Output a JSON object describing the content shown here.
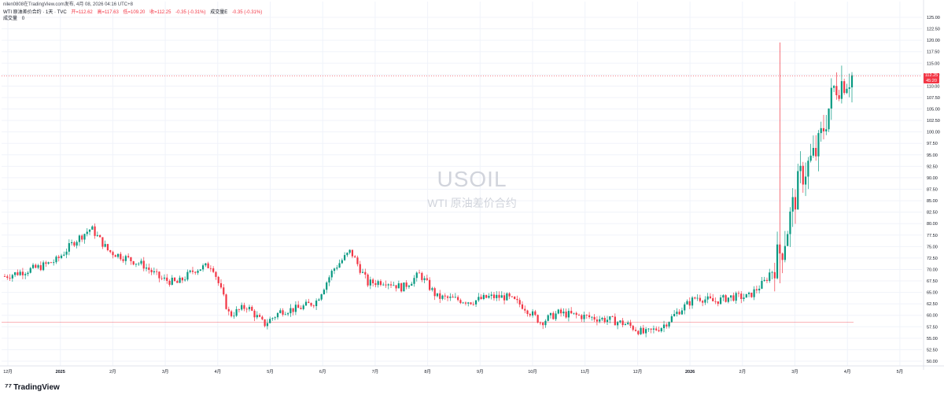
{
  "header": {
    "publisher": "nilen0808在TradingView.com发布, 4月 08, 2026 04:16 UTC+8",
    "symbol": "WTI 原油差价合约 · 1天 · TVC",
    "open": "开=112.62",
    "high": "高=117.63",
    "low": "低=109.20",
    "close": "收=112.25",
    "change": "-0.35 (-0.31%)",
    "volume_label": "成交量E",
    "volume_change": "-0.35 (-0.31%)",
    "volume_row": "成交量",
    "volume_value": "0"
  },
  "watermark": {
    "ticker": "USOIL",
    "name": "WTI 原油差价合约"
  },
  "price_tag": {
    "price": "112.25",
    "countdown": "45:20"
  },
  "brand": {
    "name": "TradingView",
    "mark": "⁷⁷"
  },
  "colors": {
    "up": "#089981",
    "down": "#f23645",
    "grid": "#f0f3fa",
    "axis_text": "#131722"
  },
  "chart_data": {
    "type": "candlestick",
    "title": "",
    "interval": "1D",
    "yaxis_ticks": [
      "125.00",
      "122.50",
      "120.00",
      "117.50",
      "115.00",
      "112.50",
      "110.00",
      "107.50",
      "105.00",
      "102.50",
      "100.00",
      "97.50",
      "95.00",
      "92.50",
      "90.00",
      "87.50",
      "85.00",
      "82.50",
      "80.00",
      "77.50",
      "75.00",
      "72.50",
      "70.00",
      "67.50",
      "65.00",
      "62.50",
      "60.00",
      "57.50",
      "55.00",
      "52.50",
      "50.00"
    ],
    "ylim": [
      50,
      125
    ],
    "xaxis_ticks": [
      "12月",
      "2025",
      "2月",
      "3月",
      "4月",
      "5月",
      "6月",
      "7月",
      "8月",
      "9月",
      "10月",
      "11月",
      "12月",
      "2026",
      "2月",
      "3月",
      "4月",
      "5月"
    ],
    "last_price": 112.25,
    "reference_level": 58.5,
    "grid": true,
    "monthly_path": [
      [
        "12月",
        68.5
      ],
      [
        "12月",
        69.5
      ],
      [
        "12月",
        70.5
      ],
      [
        "2025",
        72
      ],
      [
        "2025",
        76
      ],
      [
        "2025",
        79
      ],
      [
        "2月",
        74
      ],
      [
        "2月",
        72.5
      ],
      [
        "2月",
        71
      ],
      [
        "3月",
        68
      ],
      [
        "3月",
        67
      ],
      [
        "3月",
        70
      ],
      [
        "4月",
        71
      ],
      [
        "4月",
        60
      ],
      [
        "4月",
        62
      ],
      [
        "5月",
        58
      ],
      [
        "5月",
        61
      ],
      [
        "5月",
        61.5
      ],
      [
        "6月",
        63
      ],
      [
        "6月",
        70
      ],
      [
        "6月",
        74
      ],
      [
        "7月",
        67
      ],
      [
        "7月",
        67.5
      ],
      [
        "7月",
        66
      ],
      [
        "8月",
        69
      ],
      [
        "8月",
        64
      ],
      [
        "8月",
        63.5
      ],
      [
        "9月",
        63
      ],
      [
        "9月",
        64
      ],
      [
        "9月",
        64
      ],
      [
        "10月",
        62
      ],
      [
        "10月",
        58.5
      ],
      [
        "10月",
        60.5
      ],
      [
        "11月",
        60
      ],
      [
        "11月",
        59.5
      ],
      [
        "11月",
        59
      ],
      [
        "12月",
        58
      ],
      [
        "12月",
        56
      ],
      [
        "12月",
        57.5
      ],
      [
        "2026",
        61
      ],
      [
        "2026",
        64
      ],
      [
        "2026",
        63
      ],
      [
        "2月",
        64
      ],
      [
        "2月",
        64
      ],
      [
        "2月",
        67.5
      ],
      [
        "3月",
        75
      ],
      [
        "3月",
        90
      ],
      [
        "3月",
        96
      ],
      [
        "4月",
        110
      ],
      [
        "4月",
        112.25
      ]
    ]
  }
}
